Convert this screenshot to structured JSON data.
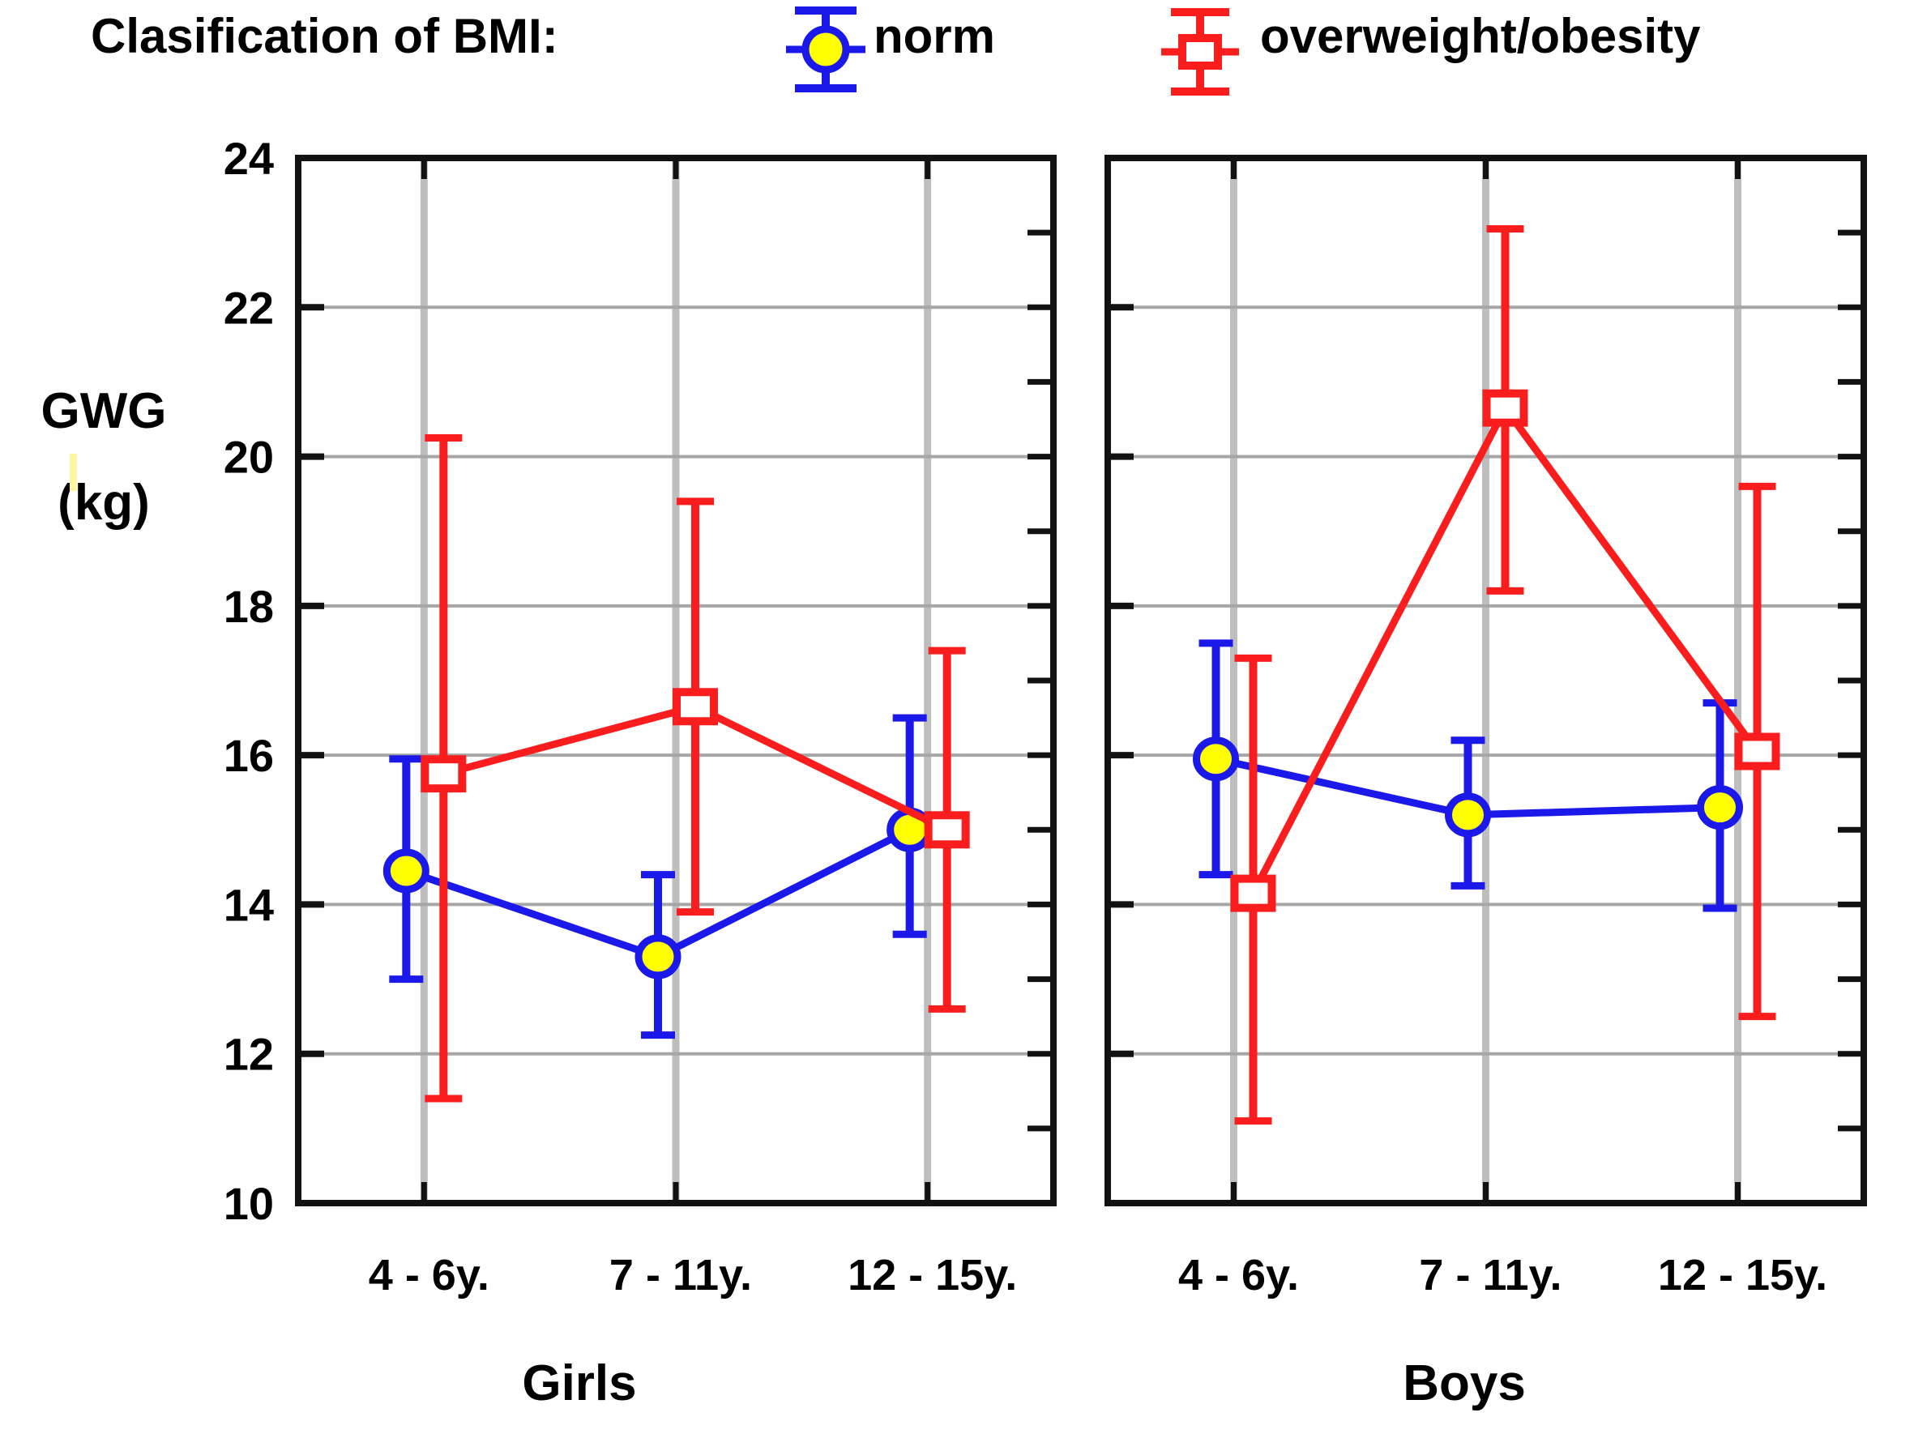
{
  "legend": {
    "title": "Clasification of BMI:",
    "items": [
      {
        "label": "norm",
        "marker": "circle-with-errorbar",
        "stroke": "#1B18EA",
        "fill": "#FFFF00"
      },
      {
        "label": "overweight/obesity",
        "marker": "square-with-errorbar",
        "stroke": "#F91D1D",
        "fill": "#FFFFFF"
      }
    ]
  },
  "y_axis": {
    "label_line1": "GWG",
    "label_line2": "(kg)",
    "min": 10,
    "max": 24,
    "tick_step": 2,
    "ticks": [
      24,
      22,
      20,
      18,
      16,
      14,
      12,
      10
    ]
  },
  "chart_data": {
    "type": "line",
    "subtype": "category-means-with-error-bars",
    "categories": [
      "4 - 6y.",
      "7 - 11y.",
      "12 - 15y."
    ],
    "ylabel": "GWG (kg)",
    "ylim": [
      10,
      24
    ],
    "grid": true,
    "legend_position": "top",
    "panels": [
      {
        "title": "Girls",
        "series": [
          {
            "name": "norm",
            "means": [
              14.45,
              13.3,
              15.0
            ],
            "ci_low": [
              13.0,
              12.25,
              13.6
            ],
            "ci_high": [
              15.95,
              14.4,
              16.5
            ]
          },
          {
            "name": "overweight/obesity",
            "means": [
              15.75,
              16.65,
              15.0
            ],
            "ci_low": [
              11.4,
              13.9,
              12.6
            ],
            "ci_high": [
              20.25,
              19.4,
              17.4
            ]
          }
        ]
      },
      {
        "title": "Boys",
        "series": [
          {
            "name": "norm",
            "means": [
              15.95,
              15.2,
              15.3
            ],
            "ci_low": [
              14.4,
              14.25,
              13.95
            ],
            "ci_high": [
              17.5,
              16.2,
              16.7
            ]
          },
          {
            "name": "overweight/obesity",
            "means": [
              14.15,
              20.65,
              16.05
            ],
            "ci_low": [
              11.1,
              18.2,
              12.5
            ],
            "ci_high": [
              17.3,
              23.05,
              19.6
            ]
          }
        ]
      }
    ]
  },
  "colors": {
    "norm_stroke": "#1B18EA",
    "norm_fill": "#FFFF00",
    "overweight_stroke": "#F91D1D",
    "overweight_fill": "#FFFFFF",
    "frame": "#121212",
    "grid_horizontal": "#A6A6A6",
    "grid_vertical": "#BEBEBE",
    "text": "#000000",
    "background": "#FFFFFF"
  }
}
